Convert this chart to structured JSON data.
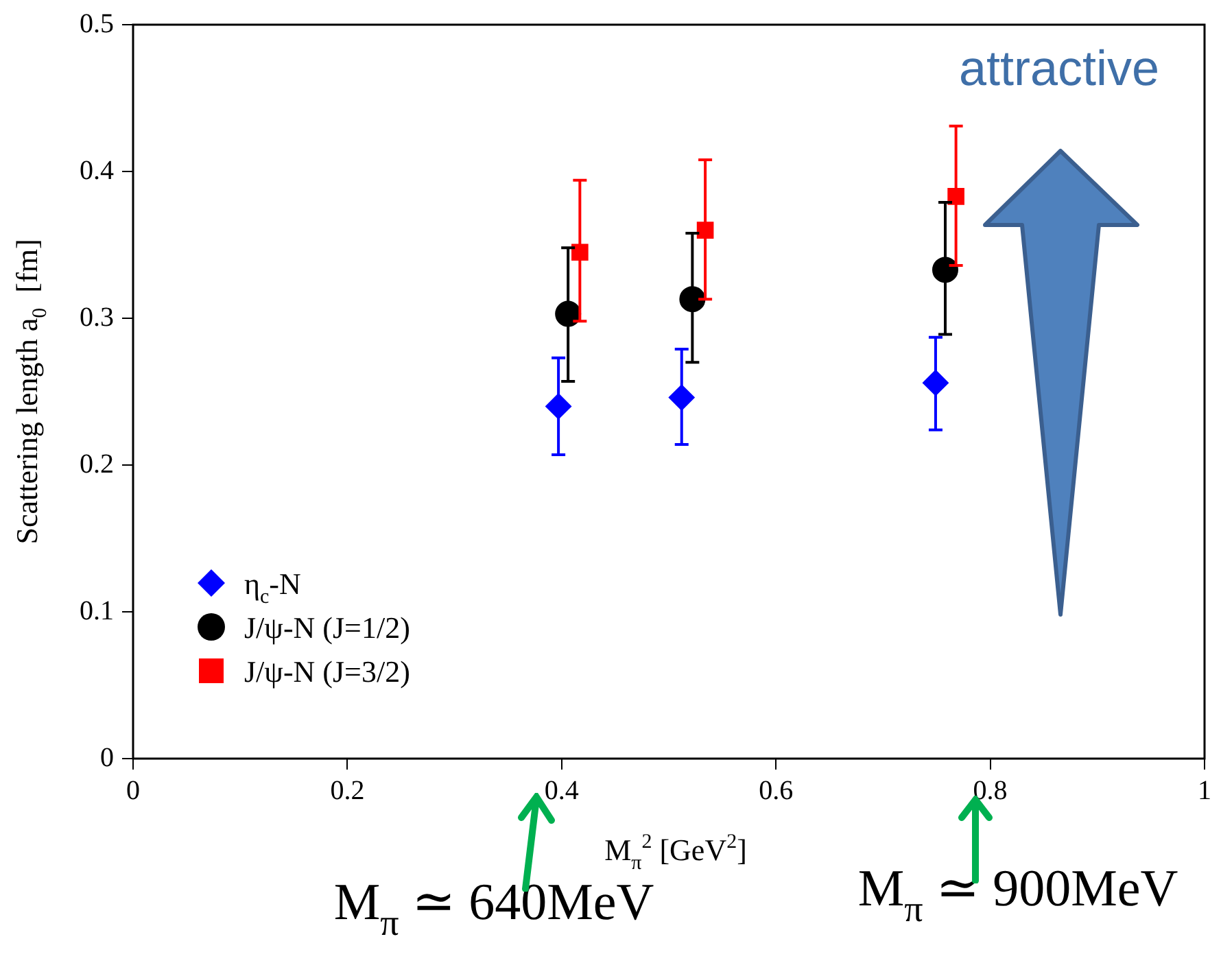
{
  "chart_data": {
    "type": "scatter",
    "xlabel": "M$_{π}$$^{2}$ [GeV$^{2}$]",
    "ylabel": "Scattering length a$_{0}$  [fm]",
    "xlim": [
      0,
      1
    ],
    "xticks": [
      0,
      0.2,
      0.4,
      0.6,
      0.8,
      1
    ],
    "ylim": [
      0,
      0.5
    ],
    "yticks": [
      0,
      0.1,
      0.2,
      0.3,
      0.4,
      0.5
    ],
    "grid": false,
    "legend": "bottom left",
    "series": [
      {
        "name": "η$_{c}$-N",
        "color": "#0000ff",
        "marker": "diamond",
        "x": [
          0.397,
          0.512,
          0.749
        ],
        "values": [
          0.24,
          0.246,
          0.256
        ],
        "errors": [
          [
            0.207,
            0.273
          ],
          [
            0.214,
            0.279
          ],
          [
            0.224,
            0.287
          ]
        ]
      },
      {
        "name": "J/ψ-N (J=1/2)",
        "color": "#000000",
        "marker": "circle",
        "x": [
          0.406,
          0.522,
          0.758
        ],
        "values": [
          0.303,
          0.313,
          0.333
        ],
        "errors": [
          [
            0.257,
            0.348
          ],
          [
            0.27,
            0.358
          ],
          [
            0.289,
            0.379
          ]
        ]
      },
      {
        "name": "J/ψ-N (J=3/2)",
        "color": "#ff0000",
        "marker": "square",
        "x": [
          0.417,
          0.534,
          0.768
        ],
        "values": [
          0.345,
          0.36,
          0.383
        ],
        "errors": [
          [
            0.298,
            0.394
          ],
          [
            0.313,
            0.408
          ],
          [
            0.336,
            0.431
          ]
        ]
      }
    ],
    "annotations": [
      "attractive",
      "M$_{π}$ ≃ 640MeV",
      "M$_{π}$ ≃ 900MeV"
    ]
  }
}
